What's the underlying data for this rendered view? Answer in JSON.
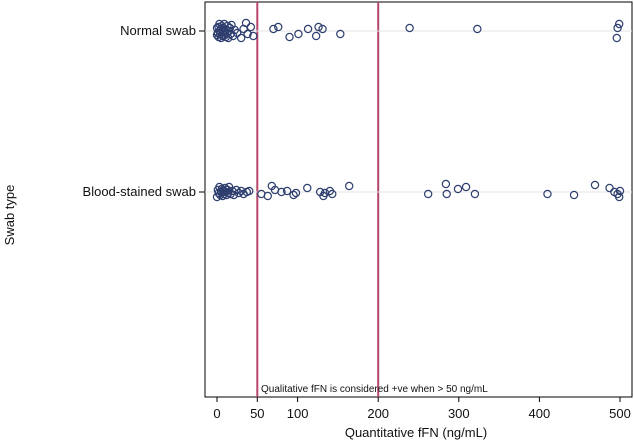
{
  "chart_data": {
    "type": "scatter",
    "xlabel": "Quantitative fFN (ng/mL)",
    "ylabel": "Swab type",
    "xlim": [
      -15,
      505
    ],
    "x_ticks": [
      0,
      50,
      100,
      200,
      300,
      400,
      500
    ],
    "categories": [
      "Normal swab",
      "Blood-stained swab"
    ],
    "reference_lines": [
      50,
      200
    ],
    "reference_line_color": "#b5476a",
    "marker_color": "#2e3e6e",
    "grid": false,
    "annotation": "Qualitative fFN is considered +ve when > 50 ng/mL",
    "series": [
      {
        "category": "Normal swab",
        "points": [
          [
            0,
            4
          ],
          [
            0,
            -3
          ],
          [
            1,
            2
          ],
          [
            2,
            -4
          ],
          [
            2,
            6
          ],
          [
            3,
            0
          ],
          [
            3,
            -7
          ],
          [
            4,
            3
          ],
          [
            5,
            -2
          ],
          [
            5,
            7
          ],
          [
            6,
            -5
          ],
          [
            7,
            1
          ],
          [
            7,
            5
          ],
          [
            8,
            -3
          ],
          [
            9,
            0
          ],
          [
            9,
            -7
          ],
          [
            10,
            4
          ],
          [
            11,
            -1
          ],
          [
            11,
            6
          ],
          [
            12,
            2
          ],
          [
            13,
            -5
          ],
          [
            14,
            7
          ],
          [
            15,
            0
          ],
          [
            16,
            -3
          ],
          [
            17,
            3
          ],
          [
            18,
            -6
          ],
          [
            20,
            5
          ],
          [
            22,
            -1
          ],
          [
            25,
            2
          ],
          [
            30,
            7
          ],
          [
            33,
            -2
          ],
          [
            36,
            -8
          ],
          [
            38,
            3
          ],
          [
            42,
            -4
          ],
          [
            45,
            5
          ],
          [
            70,
            -2
          ],
          [
            76,
            -4
          ],
          [
            90,
            6
          ],
          [
            101,
            3
          ],
          [
            113,
            -2
          ],
          [
            123,
            5
          ],
          [
            126,
            -4
          ],
          [
            131,
            -2
          ],
          [
            153,
            3
          ],
          [
            239,
            -3
          ],
          [
            323,
            -2
          ],
          [
            496,
            7
          ],
          [
            497,
            -3
          ],
          [
            499,
            -7
          ]
        ]
      },
      {
        "category": "Blood-stained swab",
        "points": [
          [
            0,
            5
          ],
          [
            1,
            -2
          ],
          [
            2,
            1
          ],
          [
            3,
            -5
          ],
          [
            4,
            3
          ],
          [
            5,
            0
          ],
          [
            6,
            -3
          ],
          [
            7,
            4
          ],
          [
            8,
            -1
          ],
          [
            9,
            2
          ],
          [
            10,
            -4
          ],
          [
            11,
            0
          ],
          [
            12,
            3
          ],
          [
            13,
            -2
          ],
          [
            14,
            1
          ],
          [
            15,
            -5
          ],
          [
            17,
            2
          ],
          [
            19,
            -1
          ],
          [
            21,
            3
          ],
          [
            24,
            -2
          ],
          [
            27,
            1
          ],
          [
            30,
            -1
          ],
          [
            33,
            2
          ],
          [
            37,
            0
          ],
          [
            40,
            -1
          ],
          [
            55,
            2
          ],
          [
            63,
            4
          ],
          [
            68,
            -6
          ],
          [
            72,
            -2
          ],
          [
            80,
            0
          ],
          [
            87,
            -1
          ],
          [
            95,
            3
          ],
          [
            98,
            1
          ],
          [
            112,
            -4
          ],
          [
            128,
            0
          ],
          [
            132,
            4
          ],
          [
            134,
            1
          ],
          [
            140,
            -1
          ],
          [
            143,
            2
          ],
          [
            164,
            -6
          ],
          [
            262,
            2
          ],
          [
            284,
            -8
          ],
          [
            285,
            2
          ],
          [
            299,
            -3
          ],
          [
            309,
            -5
          ],
          [
            320,
            2
          ],
          [
            410,
            2
          ],
          [
            443,
            3
          ],
          [
            469,
            -7
          ],
          [
            487,
            -4
          ],
          [
            493,
            0
          ],
          [
            497,
            2
          ],
          [
            499,
            5
          ],
          [
            500,
            -1
          ]
        ]
      }
    ]
  }
}
